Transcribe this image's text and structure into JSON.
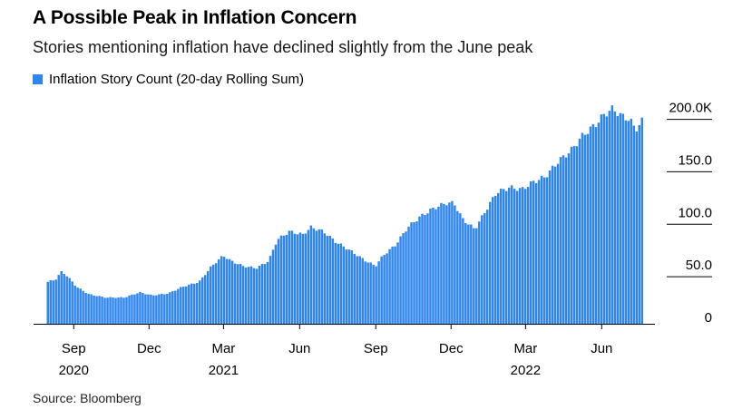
{
  "title": "A Possible Peak in Inflation Concern",
  "subtitle": "Stories mentioning inflation have declined slightly from the June peak",
  "source": "Source: Bloomberg",
  "colors": {
    "bar": "#2e85f0",
    "axis": "#000000",
    "gridline": "#000000"
  },
  "chart_data": {
    "type": "bar",
    "series": [
      {
        "name": "Inflation Story Count (20-day Rolling Sum)",
        "anchor_points": [
          [
            "2020-08-01",
            40
          ],
          [
            "2020-08-10",
            42
          ],
          [
            "2020-08-18",
            50
          ],
          [
            "2020-08-25",
            45
          ],
          [
            "2020-09-05",
            35
          ],
          [
            "2020-09-20",
            28
          ],
          [
            "2020-10-10",
            25
          ],
          [
            "2020-11-01",
            25
          ],
          [
            "2020-11-20",
            30
          ],
          [
            "2020-12-05",
            27
          ],
          [
            "2020-12-25",
            29
          ],
          [
            "2021-01-10",
            35
          ],
          [
            "2021-01-31",
            40
          ],
          [
            "2021-02-15",
            55
          ],
          [
            "2021-03-01",
            65
          ],
          [
            "2021-03-10",
            60
          ],
          [
            "2021-03-25",
            55
          ],
          [
            "2021-04-10",
            53
          ],
          [
            "2021-04-25",
            60
          ],
          [
            "2021-05-05",
            80
          ],
          [
            "2021-05-20",
            88
          ],
          [
            "2021-06-05",
            85
          ],
          [
            "2021-06-15",
            92
          ],
          [
            "2021-06-30",
            88
          ],
          [
            "2021-07-15",
            78
          ],
          [
            "2021-08-01",
            70
          ],
          [
            "2021-08-20",
            60
          ],
          [
            "2021-09-01",
            55
          ],
          [
            "2021-09-10",
            65
          ],
          [
            "2021-09-25",
            75
          ],
          [
            "2021-10-10",
            92
          ],
          [
            "2021-10-25",
            102
          ],
          [
            "2021-11-10",
            110
          ],
          [
            "2021-11-25",
            115
          ],
          [
            "2021-12-05",
            115
          ],
          [
            "2021-12-15",
            100
          ],
          [
            "2021-12-30",
            90
          ],
          [
            "2022-01-10",
            105
          ],
          [
            "2022-01-25",
            125
          ],
          [
            "2022-02-10",
            130
          ],
          [
            "2022-02-25",
            128
          ],
          [
            "2022-03-10",
            135
          ],
          [
            "2022-03-25",
            140
          ],
          [
            "2022-04-10",
            155
          ],
          [
            "2022-04-25",
            165
          ],
          [
            "2022-05-10",
            180
          ],
          [
            "2022-05-25",
            190
          ],
          [
            "2022-06-05",
            200
          ],
          [
            "2022-06-15",
            205
          ],
          [
            "2022-06-25",
            198
          ],
          [
            "2022-07-05",
            195
          ],
          [
            "2022-07-12",
            185
          ],
          [
            "2022-07-20",
            193
          ]
        ]
      }
    ],
    "x_start": "2020-08-01",
    "x_end": "2022-07-20",
    "ylim": [
      0,
      210
    ],
    "y_ticks": [
      {
        "value": 200,
        "label": "200.0K"
      },
      {
        "value": 150,
        "label": "150.0"
      },
      {
        "value": 100,
        "label": "100.0"
      },
      {
        "value": 50,
        "label": "50.0"
      },
      {
        "value": 0,
        "label": "0"
      }
    ],
    "x_ticks": [
      {
        "date": "2020-09-01",
        "label": "Sep",
        "year": "2020"
      },
      {
        "date": "2020-12-01",
        "label": "Dec",
        "year": ""
      },
      {
        "date": "2021-03-01",
        "label": "Mar",
        "year": "2021"
      },
      {
        "date": "2021-06-01",
        "label": "Jun",
        "year": ""
      },
      {
        "date": "2021-09-01",
        "label": "Sep",
        "year": ""
      },
      {
        "date": "2021-12-01",
        "label": "Dec",
        "year": ""
      },
      {
        "date": "2022-03-01",
        "label": "Mar",
        "year": "2022"
      },
      {
        "date": "2022-06-01",
        "label": "Jun",
        "year": ""
      }
    ],
    "xlabel": "",
    "ylabel": "",
    "legend_position": "top-left",
    "grid": false
  }
}
